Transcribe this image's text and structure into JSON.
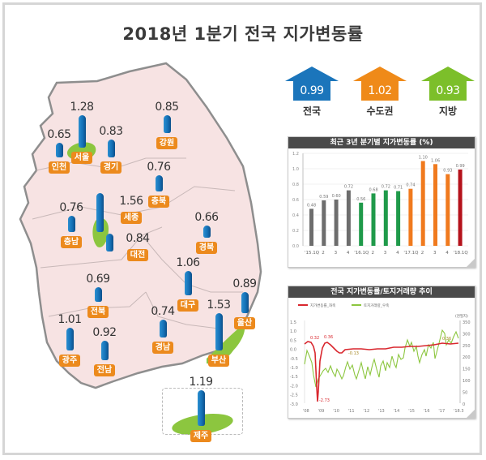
{
  "title": "2018년 1분기 전국 지가변동률",
  "summary": [
    {
      "label": "전국",
      "value": "0.99",
      "color": "#1b75bb"
    },
    {
      "label": "수도권",
      "value": "1.02",
      "color": "#ef8a19"
    },
    {
      "label": "지방",
      "value": "0.93",
      "color": "#7cbf2a"
    }
  ],
  "map": {
    "regions": [
      {
        "name": "서울",
        "value": "1.28",
        "highlight": true
      },
      {
        "name": "인천",
        "value": "0.65"
      },
      {
        "name": "경기",
        "value": "0.83"
      },
      {
        "name": "강원",
        "value": "0.85"
      },
      {
        "name": "충북",
        "value": "0.76"
      },
      {
        "name": "세종",
        "value": "1.56",
        "highlight": true
      },
      {
        "name": "충남",
        "value": "0.76"
      },
      {
        "name": "대전",
        "value": "0.84"
      },
      {
        "name": "경북",
        "value": "0.66"
      },
      {
        "name": "전북",
        "value": "0.69"
      },
      {
        "name": "대구",
        "value": "1.06"
      },
      {
        "name": "울산",
        "value": "0.89"
      },
      {
        "name": "광주",
        "value": "1.01"
      },
      {
        "name": "전남",
        "value": "0.92"
      },
      {
        "name": "경남",
        "value": "0.74"
      },
      {
        "name": "부산",
        "value": "1.53",
        "highlight": true
      },
      {
        "name": "제주",
        "value": "1.19",
        "highlight": true
      }
    ]
  },
  "chart_data": [
    {
      "type": "bar",
      "title": "최근 3년 분기별 지가변동률 (%)",
      "categories": [
        "'15.1Q",
        "2",
        "3",
        "4",
        "'16.1Q",
        "2",
        "3",
        "4",
        "'17.1Q",
        "2",
        "3",
        "4",
        "'18.1Q"
      ],
      "values": [
        0.48,
        0.59,
        0.6,
        0.72,
        0.56,
        0.68,
        0.72,
        0.71,
        0.74,
        1.1,
        1.06,
        0.93,
        0.99
      ],
      "value_labels": [
        "0.48",
        "0.59",
        "0.60",
        "0.72",
        "0.56",
        "0.68",
        "0.72",
        "0.71",
        "0.74",
        "1.10",
        "1.06",
        "0.93",
        "0.99"
      ],
      "bar_colors": [
        "#6d6d6d",
        "#6d6d6d",
        "#6d6d6d",
        "#6d6d6d",
        "#1f9a4a",
        "#1f9a4a",
        "#1f9a4a",
        "#1f9a4a",
        "#f07a1e",
        "#f07a1e",
        "#f07a1e",
        "#f07a1e",
        "#b5121b"
      ],
      "yticks": [
        "0.0",
        "0.2",
        "0.4",
        "0.6",
        "0.8",
        "1.0",
        "1.2"
      ],
      "ylim": [
        0,
        1.2
      ],
      "grid": true
    },
    {
      "type": "line",
      "title": "전국 지가변동률/토지거래량 추이",
      "legend": [
        "지가변동률_좌축",
        "토지거래량_우축"
      ],
      "series_colors": [
        "#d9272e",
        "#8cc63f"
      ],
      "x_ticks": [
        "'08",
        "'09",
        "'10",
        "'11",
        "'12",
        "'13",
        "'14",
        "'15",
        "'16",
        "'17",
        "'18.3"
      ],
      "left_axis": {
        "ticks": [
          "1.5",
          "1.0",
          "0.5",
          "0.0",
          "-0.5",
          "-1.0",
          "-1.5",
          "-2.0",
          "-2.5",
          "-3.0"
        ],
        "ylim": [
          -3.0,
          1.5
        ]
      },
      "right_axis": {
        "unit": "(천필지)",
        "ticks": [
          "350",
          "300",
          "250",
          "200",
          "150",
          "100",
          "50",
          "0"
        ],
        "ylim": [
          0,
          350
        ]
      },
      "annotations": [
        "0.32",
        "0.36",
        "-2.73",
        "-0.13",
        "0.36"
      ],
      "series": [
        {
          "name": "지가변동률_좌축",
          "x": [
            "'08",
            "'08.6",
            "'08.10",
            "'09.1",
            "'09.4",
            "'09.8",
            "'10",
            "'10.6",
            "'11",
            "'12",
            "'13",
            "'14",
            "'15",
            "'16",
            "'17",
            "'18.3"
          ],
          "values": [
            0.3,
            0.45,
            0.32,
            -2.73,
            -0.3,
            0.36,
            0.25,
            0.0,
            -0.13,
            0.05,
            0.05,
            0.12,
            0.2,
            0.22,
            0.3,
            0.36
          ]
        },
        {
          "name": "토지거래량_우축",
          "x": [
            "'08",
            "'08.6",
            "'09.1",
            "'09.6",
            "'10",
            "'10.6",
            "'11",
            "'12",
            "'13",
            "'14",
            "'15",
            "'15.6",
            "'16",
            "'16.6",
            "'17",
            "'17.6",
            "'18.3"
          ],
          "values": [
            170,
            240,
            130,
            190,
            200,
            160,
            220,
            190,
            175,
            210,
            280,
            250,
            200,
            250,
            230,
            320,
            300
          ]
        }
      ]
    }
  ]
}
